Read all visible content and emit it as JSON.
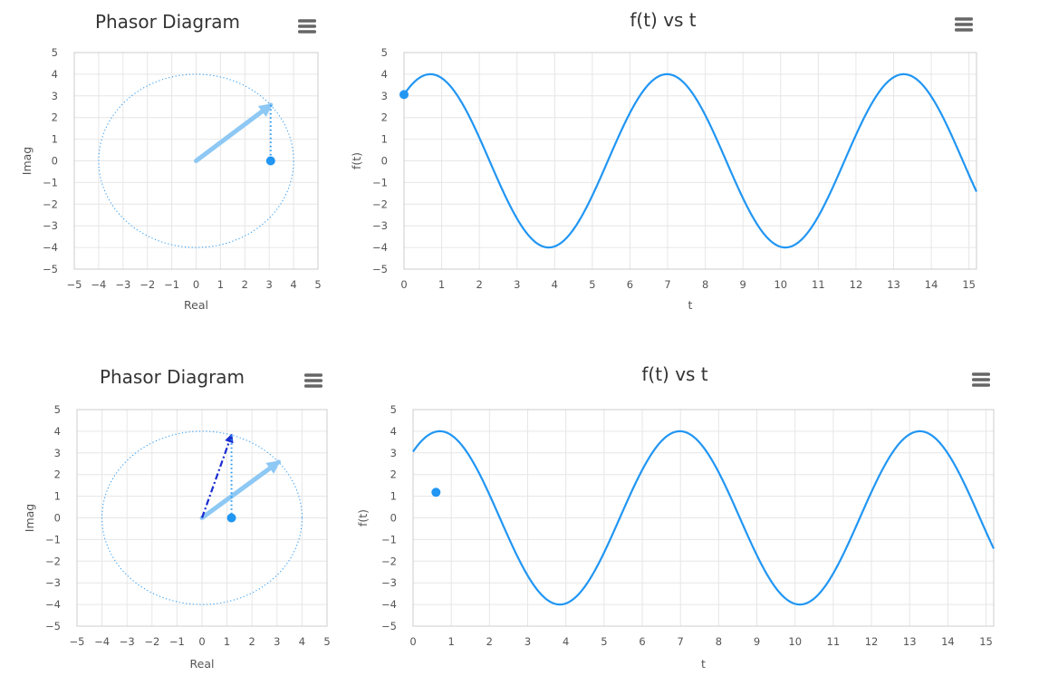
{
  "chart_data": [
    {
      "type": "scatter",
      "title": "Phasor Diagram",
      "xlabel": "Real",
      "ylabel": "Imag",
      "xlim": [
        -5,
        5
      ],
      "ylim": [
        -5,
        5
      ],
      "x_ticks": [
        -5,
        -4,
        -3,
        -2,
        -1,
        0,
        1,
        2,
        3,
        4,
        5
      ],
      "y_ticks": [
        -5,
        -4,
        -3,
        -2,
        -1,
        0,
        1,
        2,
        3,
        4,
        5
      ],
      "grid": true,
      "circle_radius": 4,
      "phasors": [
        {
          "style": "dash-dot",
          "color": "#1a2bd1",
          "from": [
            0,
            0
          ],
          "to": [
            3.06,
            2.58
          ]
        },
        {
          "style": "solid-thick",
          "color": "#8ec8f4",
          "from": [
            0,
            0
          ],
          "to": [
            3.06,
            2.58
          ]
        }
      ],
      "projection_line": {
        "from": [
          3.06,
          2.58
        ],
        "to": [
          3.06,
          0
        ]
      },
      "point": {
        "x": 3.06,
        "y": 0
      }
    },
    {
      "type": "line",
      "title": "f(t) vs t",
      "xlabel": "t",
      "ylabel": "f(t)",
      "xlim": [
        0,
        15.2
      ],
      "ylim": [
        -5,
        5
      ],
      "x_ticks": [
        0,
        1,
        2,
        3,
        4,
        5,
        6,
        7,
        8,
        9,
        10,
        11,
        12,
        13,
        14,
        15
      ],
      "y_ticks": [
        -5,
        -4,
        -3,
        -2,
        -1,
        0,
        1,
        2,
        3,
        4,
        5
      ],
      "grid": true,
      "series": [
        {
          "amplitude": 4,
          "omega": 1,
          "phase": -0.7,
          "color": "#2196f3"
        }
      ],
      "point": {
        "x": 0,
        "y": 3.06
      }
    },
    {
      "type": "scatter",
      "title": "Phasor Diagram",
      "xlabel": "Real",
      "ylabel": "Imag",
      "xlim": [
        -5,
        5
      ],
      "ylim": [
        -5,
        5
      ],
      "x_ticks": [
        -5,
        -4,
        -3,
        -2,
        -1,
        0,
        1,
        2,
        3,
        4,
        5
      ],
      "y_ticks": [
        -5,
        -4,
        -3,
        -2,
        -1,
        0,
        1,
        2,
        3,
        4,
        5
      ],
      "grid": true,
      "circle_radius": 4,
      "phasors": [
        {
          "style": "solid-thick",
          "color": "#8ec8f4",
          "from": [
            0,
            0
          ],
          "to": [
            3.06,
            2.58
          ]
        },
        {
          "style": "dash-dot",
          "color": "#1a2bd1",
          "from": [
            0,
            0
          ],
          "to": [
            1.18,
            3.82
          ]
        }
      ],
      "projection_line": {
        "from": [
          1.18,
          3.82
        ],
        "to": [
          1.18,
          0
        ]
      },
      "point": {
        "x": 1.18,
        "y": 0
      }
    },
    {
      "type": "line",
      "title": "f(t) vs t",
      "xlabel": "t",
      "ylabel": "f(t)",
      "xlim": [
        0,
        15.2
      ],
      "ylim": [
        -5,
        5
      ],
      "x_ticks": [
        0,
        1,
        2,
        3,
        4,
        5,
        6,
        7,
        8,
        9,
        10,
        11,
        12,
        13,
        14,
        15
      ],
      "y_ticks": [
        -5,
        -4,
        -3,
        -2,
        -1,
        0,
        1,
        2,
        3,
        4,
        5
      ],
      "grid": true,
      "series": [
        {
          "amplitude": 4,
          "omega": 1,
          "phase": -0.7,
          "color": "#2196f3"
        }
      ],
      "point": {
        "x": 0.6,
        "y": 1.18
      }
    }
  ],
  "ui": {
    "menu_icon": "hamburger-menu-icon",
    "colors": {
      "curve": "#2196f3",
      "dash_phasor": "#1a2bd1",
      "thick_phasor": "#8ec8f4",
      "grid": "#e6e6e6",
      "frame": "#cccccc",
      "circle": "#2196f3"
    }
  }
}
